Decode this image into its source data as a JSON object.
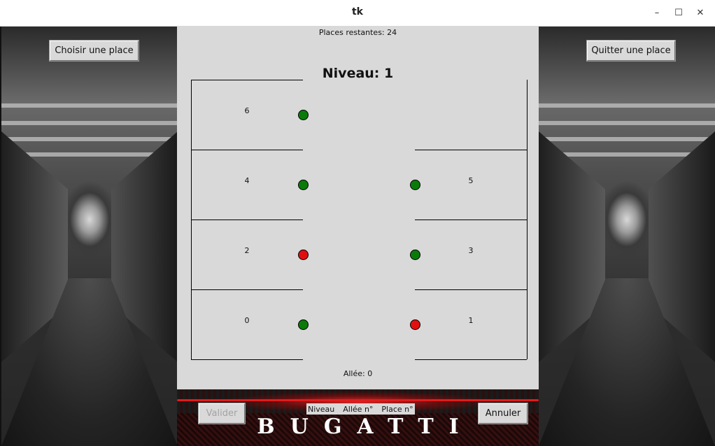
{
  "window": {
    "title": "tk",
    "controls": [
      "–",
      "☐",
      "✕"
    ]
  },
  "left_panel": {
    "button_label": "Choisir une place"
  },
  "right_panel": {
    "button_label": "Quitter une place"
  },
  "main": {
    "places_remaining": "Places restantes: 24",
    "level_title": "Niveau: 1",
    "alley_label": "Allée: 0",
    "spots": [
      {
        "number": "6",
        "side": "left",
        "row": 0,
        "status": "free",
        "color": "#0a7a0a"
      },
      {
        "number": "4",
        "side": "left",
        "row": 1,
        "status": "free",
        "color": "#0a7a0a"
      },
      {
        "number": "5",
        "side": "right",
        "row": 1,
        "status": "free",
        "color": "#0a7a0a"
      },
      {
        "number": "2",
        "side": "left",
        "row": 2,
        "status": "occupied",
        "color": "#e01010"
      },
      {
        "number": "3",
        "side": "right",
        "row": 2,
        "status": "free",
        "color": "#0a7a0a"
      },
      {
        "number": "0",
        "side": "left",
        "row": 3,
        "status": "free",
        "color": "#0a7a0a"
      },
      {
        "number": "1",
        "side": "right",
        "row": 3,
        "status": "occupied",
        "color": "#e01010"
      }
    ]
  },
  "footer": {
    "validate_label": "Valider",
    "cancel_label": "Annuler",
    "info_niveau": "Niveau",
    "info_allee": "Allée n°",
    "info_place": "Place n°",
    "brand": "BUGATTI"
  },
  "colors": {
    "free": "#0a7a0a",
    "occupied": "#e01010",
    "panel_bg": "#d9d9d9"
  }
}
